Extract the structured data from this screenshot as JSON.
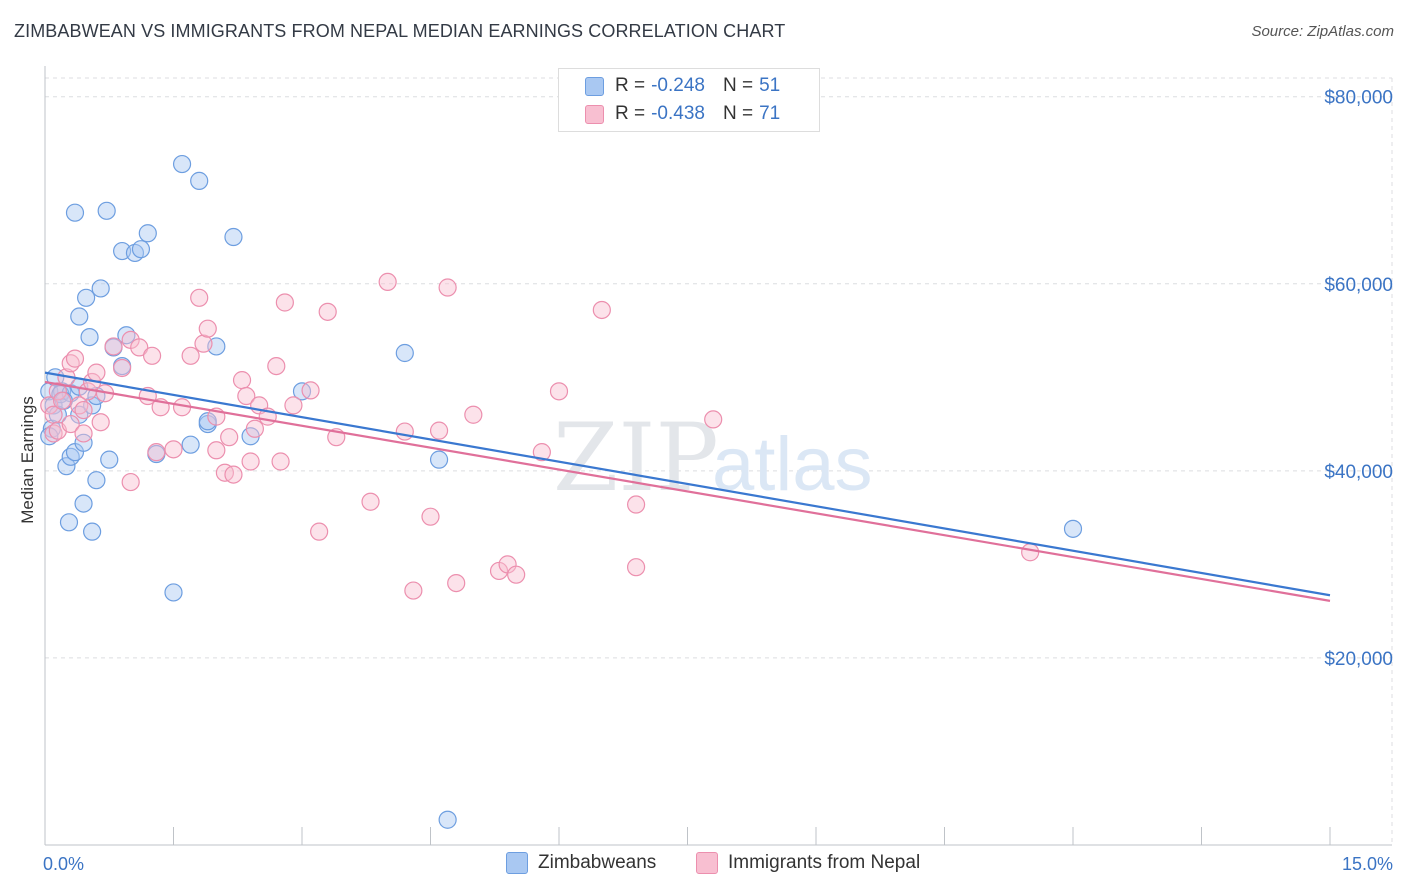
{
  "title": "ZIMBABWEAN VS IMMIGRANTS FROM NEPAL MEDIAN EARNINGS CORRELATION CHART",
  "source": "Source: ZipAtlas.com",
  "watermark": {
    "zip": "ZIP",
    "atlas": "atlas"
  },
  "legend_top": [
    {
      "swatch_color": "#a9c8f2",
      "border_color": "#6d9ee0",
      "r_label": "R =",
      "r_value": "-0.248",
      "n_label": "N =",
      "n_value": "51"
    },
    {
      "swatch_color": "#f8bfd1",
      "border_color": "#ec8fae",
      "r_label": "R =",
      "r_value": "-0.438",
      "n_label": "N =",
      "n_value": "71"
    }
  ],
  "legend_bottom": [
    {
      "label": "Zimbabweans",
      "swatch_color": "#a9c8f2",
      "border_color": "#6d9ee0"
    },
    {
      "label": "Immigrants from Nepal",
      "swatch_color": "#f8bfd1",
      "border_color": "#ec8fae"
    }
  ],
  "chart_data": {
    "type": "scatter",
    "title": "ZIMBABWEAN VS IMMIGRANTS FROM NEPAL MEDIAN EARNINGS CORRELATION CHART",
    "xlabel": "",
    "ylabel": "Median Earnings",
    "xlim": [
      0,
      15
    ],
    "ylim": [
      0,
      82000
    ],
    "x_tick_labels": [
      {
        "value": 0,
        "label": "0.0%"
      },
      {
        "value": 15,
        "label": "15.0%"
      }
    ],
    "y_ticks": [
      {
        "value": 20000,
        "label": "$20,000"
      },
      {
        "value": 40000,
        "label": "$40,000"
      },
      {
        "value": 60000,
        "label": "$60,000"
      },
      {
        "value": 80000,
        "label": "$80,000"
      }
    ],
    "grid": true,
    "series": [
      {
        "name": "Zimbabweans",
        "color": "#6d9ee0",
        "fill": "#a9c8f2",
        "line_color": "#3a78d0",
        "trend": {
          "x": [
            0,
            15
          ],
          "y": [
            50500,
            26700
          ]
        },
        "points": [
          [
            0.05,
            48500
          ],
          [
            0.08,
            44500
          ],
          [
            0.1,
            47000
          ],
          [
            0.12,
            50000
          ],
          [
            0.15,
            46000
          ],
          [
            0.2,
            48500
          ],
          [
            0.25,
            40500
          ],
          [
            0.28,
            34500
          ],
          [
            0.3,
            41500
          ],
          [
            0.35,
            42000
          ],
          [
            0.35,
            67600
          ],
          [
            0.4,
            56500
          ],
          [
            0.4,
            46000
          ],
          [
            0.45,
            43000
          ],
          [
            0.45,
            36500
          ],
          [
            0.48,
            58500
          ],
          [
            0.52,
            54300
          ],
          [
            0.55,
            33500
          ],
          [
            0.6,
            39000
          ],
          [
            0.65,
            59500
          ],
          [
            0.72,
            67800
          ],
          [
            0.75,
            41200
          ],
          [
            0.8,
            53200
          ],
          [
            0.9,
            51200
          ],
          [
            0.9,
            63500
          ],
          [
            0.95,
            54500
          ],
          [
            1.05,
            63300
          ],
          [
            1.12,
            63700
          ],
          [
            1.2,
            65400
          ],
          [
            1.3,
            41800
          ],
          [
            1.5,
            27000
          ],
          [
            1.6,
            72800
          ],
          [
            1.7,
            42800
          ],
          [
            1.8,
            71000
          ],
          [
            1.9,
            45000
          ],
          [
            1.9,
            45300
          ],
          [
            2.0,
            53300
          ],
          [
            2.2,
            65000
          ],
          [
            2.4,
            43700
          ],
          [
            3.0,
            48500
          ],
          [
            4.2,
            52600
          ],
          [
            4.6,
            41200
          ],
          [
            4.7,
            2700
          ],
          [
            12.0,
            33800
          ],
          [
            0.18,
            48200
          ],
          [
            0.05,
            43700
          ],
          [
            0.3,
            48300
          ],
          [
            0.22,
            47500
          ],
          [
            0.55,
            47000
          ],
          [
            0.4,
            49000
          ],
          [
            0.6,
            48000
          ]
        ]
      },
      {
        "name": "Immigrants from Nepal",
        "color": "#ec8fae",
        "fill": "#f8bfd1",
        "line_color": "#e0709a",
        "trend": {
          "x": [
            0,
            15
          ],
          "y": [
            49500,
            26100
          ]
        },
        "points": [
          [
            0.05,
            47000
          ],
          [
            0.1,
            44000
          ],
          [
            0.15,
            48500
          ],
          [
            0.25,
            50000
          ],
          [
            0.3,
            51500
          ],
          [
            0.35,
            52000
          ],
          [
            0.4,
            47000
          ],
          [
            0.45,
            46500
          ],
          [
            0.5,
            48500
          ],
          [
            0.55,
            49500
          ],
          [
            0.6,
            50500
          ],
          [
            0.7,
            48300
          ],
          [
            0.8,
            53300
          ],
          [
            0.9,
            51000
          ],
          [
            1.0,
            54000
          ],
          [
            1.0,
            38800
          ],
          [
            1.1,
            53200
          ],
          [
            1.2,
            48000
          ],
          [
            1.25,
            52300
          ],
          [
            1.3,
            42000
          ],
          [
            1.35,
            46800
          ],
          [
            1.5,
            42300
          ],
          [
            1.6,
            46800
          ],
          [
            1.7,
            52300
          ],
          [
            1.8,
            58500
          ],
          [
            1.85,
            53600
          ],
          [
            1.9,
            55200
          ],
          [
            2.0,
            42200
          ],
          [
            2.0,
            45800
          ],
          [
            2.1,
            39800
          ],
          [
            2.15,
            43600
          ],
          [
            2.2,
            39600
          ],
          [
            2.3,
            49700
          ],
          [
            2.35,
            48000
          ],
          [
            2.4,
            41000
          ],
          [
            2.45,
            44500
          ],
          [
            2.5,
            47000
          ],
          [
            2.6,
            45800
          ],
          [
            2.7,
            51200
          ],
          [
            2.75,
            41000
          ],
          [
            2.8,
            58000
          ],
          [
            2.9,
            47000
          ],
          [
            3.1,
            48600
          ],
          [
            3.2,
            33500
          ],
          [
            3.3,
            57000
          ],
          [
            3.4,
            43600
          ],
          [
            3.8,
            36700
          ],
          [
            4.0,
            60200
          ],
          [
            4.2,
            44200
          ],
          [
            4.3,
            27200
          ],
          [
            4.5,
            35100
          ],
          [
            4.6,
            44300
          ],
          [
            4.7,
            59600
          ],
          [
            4.8,
            28000
          ],
          [
            5.0,
            46000
          ],
          [
            5.3,
            29300
          ],
          [
            5.4,
            30000
          ],
          [
            5.5,
            28900
          ],
          [
            5.8,
            42000
          ],
          [
            6.0,
            48500
          ],
          [
            6.5,
            57200
          ],
          [
            6.9,
            36400
          ],
          [
            6.9,
            29700
          ],
          [
            7.8,
            45500
          ],
          [
            11.5,
            31300
          ],
          [
            0.1,
            46000
          ],
          [
            0.2,
            47500
          ],
          [
            0.15,
            44300
          ],
          [
            0.3,
            45000
          ],
          [
            0.45,
            44000
          ],
          [
            0.65,
            45200
          ]
        ]
      }
    ]
  }
}
